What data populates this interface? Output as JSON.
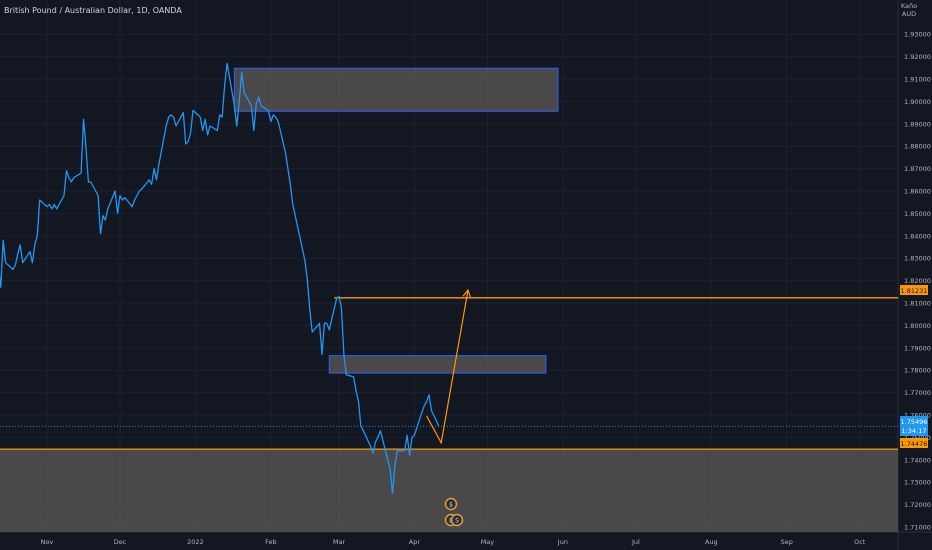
{
  "header": {
    "title": "British Pound / Australian Dollar, 1D, OANDA"
  },
  "price_axis": {
    "unit_line1": "Kaño",
    "unit_line2": "AUD"
  },
  "colors": {
    "background": "#131722",
    "price_line": "#2196f3",
    "level_line": "#ff9800",
    "zone_fill": "#5d5a55",
    "zone_border": "#2962ff",
    "text": "#b2b5be",
    "last_price_badge": "#2196f3"
  },
  "badges": {
    "top_level": "1.81231",
    "current_price": "1.75496",
    "countdown": "1:34:17",
    "bottom_level": "1.74476"
  },
  "event_icons": [
    "dividend-icon",
    "earnings-icon",
    "split-icon"
  ],
  "chart_data": {
    "type": "line",
    "title": "British Pound / Australian Dollar, 1D, OANDA",
    "xlabel": "",
    "ylabel": "",
    "ylim": [
      1.705,
      1.935
    ],
    "grid": true,
    "x_ticks": [
      "Nov",
      "Dec",
      "2022",
      "Feb",
      "Mar",
      "Apr",
      "May",
      "Jun",
      "Jul",
      "Aug",
      "Sep",
      "Oct",
      "N"
    ],
    "y_ticks": [
      1.93,
      1.92,
      1.91,
      1.9,
      1.89,
      1.88,
      1.87,
      1.86,
      1.85,
      1.84,
      1.83,
      1.82,
      1.81,
      1.8,
      1.79,
      1.78,
      1.77,
      1.76,
      1.75,
      1.74,
      1.73,
      1.72,
      1.71
    ],
    "series": [
      {
        "values": [
          [
            "2021-10-08",
            1.851
          ],
          [
            "2021-10-10",
            1.849
          ],
          [
            "2021-10-12",
            1.85
          ],
          [
            "2021-10-13",
            1.846
          ],
          [
            "2021-10-14",
            1.852
          ],
          [
            "2021-10-15",
            1.843
          ],
          [
            "2021-10-17",
            1.848
          ],
          [
            "2021-10-19",
            1.84
          ],
          [
            "2021-10-20",
            1.842
          ],
          [
            "2021-10-21",
            1.838
          ],
          [
            "2021-10-22",
            1.835
          ],
          [
            "2021-10-25",
            1.834
          ],
          [
            "2021-10-26",
            1.826
          ],
          [
            "2021-10-27",
            1.817
          ],
          [
            "2021-10-28",
            1.838
          ],
          [
            "2021-10-29",
            1.828
          ],
          [
            "2021-11-01",
            1.825
          ],
          [
            "2021-11-02",
            1.827
          ],
          [
            "2021-11-03",
            1.832
          ],
          [
            "2021-11-04",
            1.836
          ],
          [
            "2021-11-05",
            1.828
          ],
          [
            "2021-11-08",
            1.833
          ],
          [
            "2021-11-09",
            1.828
          ],
          [
            "2021-11-10",
            1.836
          ],
          [
            "2021-11-11",
            1.84
          ],
          [
            "2021-11-12",
            1.856
          ],
          [
            "2021-11-15",
            1.853
          ],
          [
            "2021-11-16",
            1.854
          ],
          [
            "2021-11-17",
            1.852
          ],
          [
            "2021-11-18",
            1.854
          ],
          [
            "2021-11-19",
            1.852
          ],
          [
            "2021-11-22",
            1.858
          ],
          [
            "2021-11-23",
            1.869
          ],
          [
            "2021-11-24",
            1.866
          ],
          [
            "2021-11-25",
            1.864
          ],
          [
            "2021-11-26",
            1.866
          ],
          [
            "2021-11-29",
            1.868
          ],
          [
            "2021-11-30",
            1.892
          ],
          [
            "2021-12-01",
            1.88
          ],
          [
            "2021-12-02",
            1.864
          ],
          [
            "2021-12-03",
            1.864
          ],
          [
            "2021-12-06",
            1.858
          ],
          [
            "2021-12-07",
            1.841
          ],
          [
            "2021-12-08",
            1.849
          ],
          [
            "2021-12-09",
            1.847
          ],
          [
            "2021-12-10",
            1.852
          ],
          [
            "2021-12-13",
            1.86
          ],
          [
            "2021-12-14",
            1.85
          ],
          [
            "2021-12-15",
            1.858
          ],
          [
            "2021-12-16",
            1.856
          ],
          [
            "2021-12-17",
            1.857
          ],
          [
            "2021-12-20",
            1.853
          ],
          [
            "2021-12-21",
            1.856
          ],
          [
            "2021-12-22",
            1.858
          ],
          [
            "2021-12-23",
            1.86
          ],
          [
            "2021-12-24",
            1.861
          ],
          [
            "2021-12-27",
            1.865
          ],
          [
            "2021-12-28",
            1.863
          ],
          [
            "2021-12-29",
            1.87
          ],
          [
            "2021-12-30",
            1.865
          ],
          [
            "2021-12-31",
            1.872
          ],
          [
            "2022-01-03",
            1.889
          ],
          [
            "2022-01-04",
            1.893
          ],
          [
            "2022-01-05",
            1.894
          ],
          [
            "2022-01-06",
            1.893
          ],
          [
            "2022-01-07",
            1.889
          ],
          [
            "2022-01-10",
            1.895
          ],
          [
            "2022-01-11",
            1.881
          ],
          [
            "2022-01-12",
            1.882
          ],
          [
            "2022-01-13",
            1.886
          ],
          [
            "2022-01-14",
            1.896
          ],
          [
            "2022-01-17",
            1.893
          ],
          [
            "2022-01-18",
            1.887
          ],
          [
            "2022-01-19",
            1.892
          ],
          [
            "2022-01-20",
            1.885
          ],
          [
            "2022-01-21",
            1.889
          ],
          [
            "2022-01-24",
            1.887
          ],
          [
            "2022-01-25",
            1.894
          ],
          [
            "2022-01-26",
            1.893
          ],
          [
            "2022-01-27",
            1.907
          ],
          [
            "2022-01-28",
            1.917
          ],
          [
            "2022-01-31",
            1.898
          ],
          [
            "2022-02-01",
            1.889
          ],
          [
            "2022-02-02",
            1.9
          ],
          [
            "2022-02-03",
            1.913
          ],
          [
            "2022-02-04",
            1.904
          ],
          [
            "2022-02-07",
            1.898
          ],
          [
            "2022-02-08",
            1.887
          ],
          [
            "2022-02-09",
            1.899
          ],
          [
            "2022-02-10",
            1.902
          ],
          [
            "2022-02-11",
            1.898
          ],
          [
            "2022-02-14",
            1.896
          ],
          [
            "2022-02-15",
            1.891
          ],
          [
            "2022-02-16",
            1.894
          ],
          [
            "2022-02-17",
            1.893
          ],
          [
            "2022-02-18",
            1.891
          ],
          [
            "2022-02-21",
            1.877
          ],
          [
            "2022-02-22",
            1.87
          ],
          [
            "2022-02-23",
            1.863
          ],
          [
            "2022-02-24",
            1.854
          ],
          [
            "2022-02-25",
            1.849
          ],
          [
            "2022-02-28",
            1.834
          ],
          [
            "2022-03-01",
            1.829
          ],
          [
            "2022-03-02",
            1.82
          ],
          [
            "2022-03-03",
            1.807
          ],
          [
            "2022-03-04",
            1.797
          ],
          [
            "2022-03-07",
            1.801
          ],
          [
            "2022-03-08",
            1.787
          ],
          [
            "2022-03-09",
            1.801
          ],
          [
            "2022-03-10",
            1.801
          ],
          [
            "2022-03-11",
            1.798
          ],
          [
            "2022-03-14",
            1.812
          ],
          [
            "2022-03-15",
            1.813
          ],
          [
            "2022-03-16",
            1.808
          ],
          [
            "2022-03-17",
            1.787
          ],
          [
            "2022-03-18",
            1.778
          ],
          [
            "2022-03-21",
            1.777
          ],
          [
            "2022-03-22",
            1.771
          ],
          [
            "2022-03-23",
            1.766
          ],
          [
            "2022-03-24",
            1.755
          ],
          [
            "2022-03-25",
            1.753
          ],
          [
            "2022-03-28",
            1.746
          ],
          [
            "2022-03-29",
            1.743
          ],
          [
            "2022-03-30",
            1.748
          ],
          [
            "2022-03-31",
            1.75
          ],
          [
            "2022-04-01",
            1.753
          ],
          [
            "2022-04-04",
            1.74
          ],
          [
            "2022-04-05",
            1.736
          ],
          [
            "2022-04-06",
            1.725
          ],
          [
            "2022-04-07",
            1.738
          ],
          [
            "2022-04-08",
            1.744
          ],
          [
            "2022-04-11",
            1.744
          ],
          [
            "2022-04-12",
            1.751
          ],
          [
            "2022-04-13",
            1.742
          ],
          [
            "2022-04-14",
            1.75
          ],
          [
            "2022-04-15",
            1.751
          ],
          [
            "2022-04-18",
            1.761
          ],
          [
            "2022-04-19",
            1.764
          ],
          [
            "2022-04-20",
            1.766
          ],
          [
            "2022-04-21",
            1.769
          ],
          [
            "2022-04-22",
            1.762
          ],
          [
            "2022-04-25",
            1.755
          ]
        ]
      }
    ],
    "zones": [
      {
        "x_start": "2022-01-31",
        "x_end": "2022-06-13",
        "y_top": 1.9148,
        "y_bottom": 1.8956
      },
      {
        "x_start": "2022-03-11",
        "x_end": "2022-06-08",
        "y_top": 1.7865,
        "y_bottom": 1.7787
      },
      {
        "x_start": "2021-10-01",
        "x_end": "2022-11-25",
        "y_top": 1.7447,
        "y_bottom": 1.705
      }
    ],
    "levels": [
      {
        "value": 1.81231,
        "x_start": "2022-03-13"
      },
      {
        "value": 1.74476,
        "x_start": "2021-10-01"
      }
    ],
    "arrow": {
      "points": [
        [
          "2022-04-20",
          1.7596
        ],
        [
          "2022-04-26",
          1.7476
        ],
        [
          "2022-05-07",
          1.8158
        ]
      ]
    }
  }
}
